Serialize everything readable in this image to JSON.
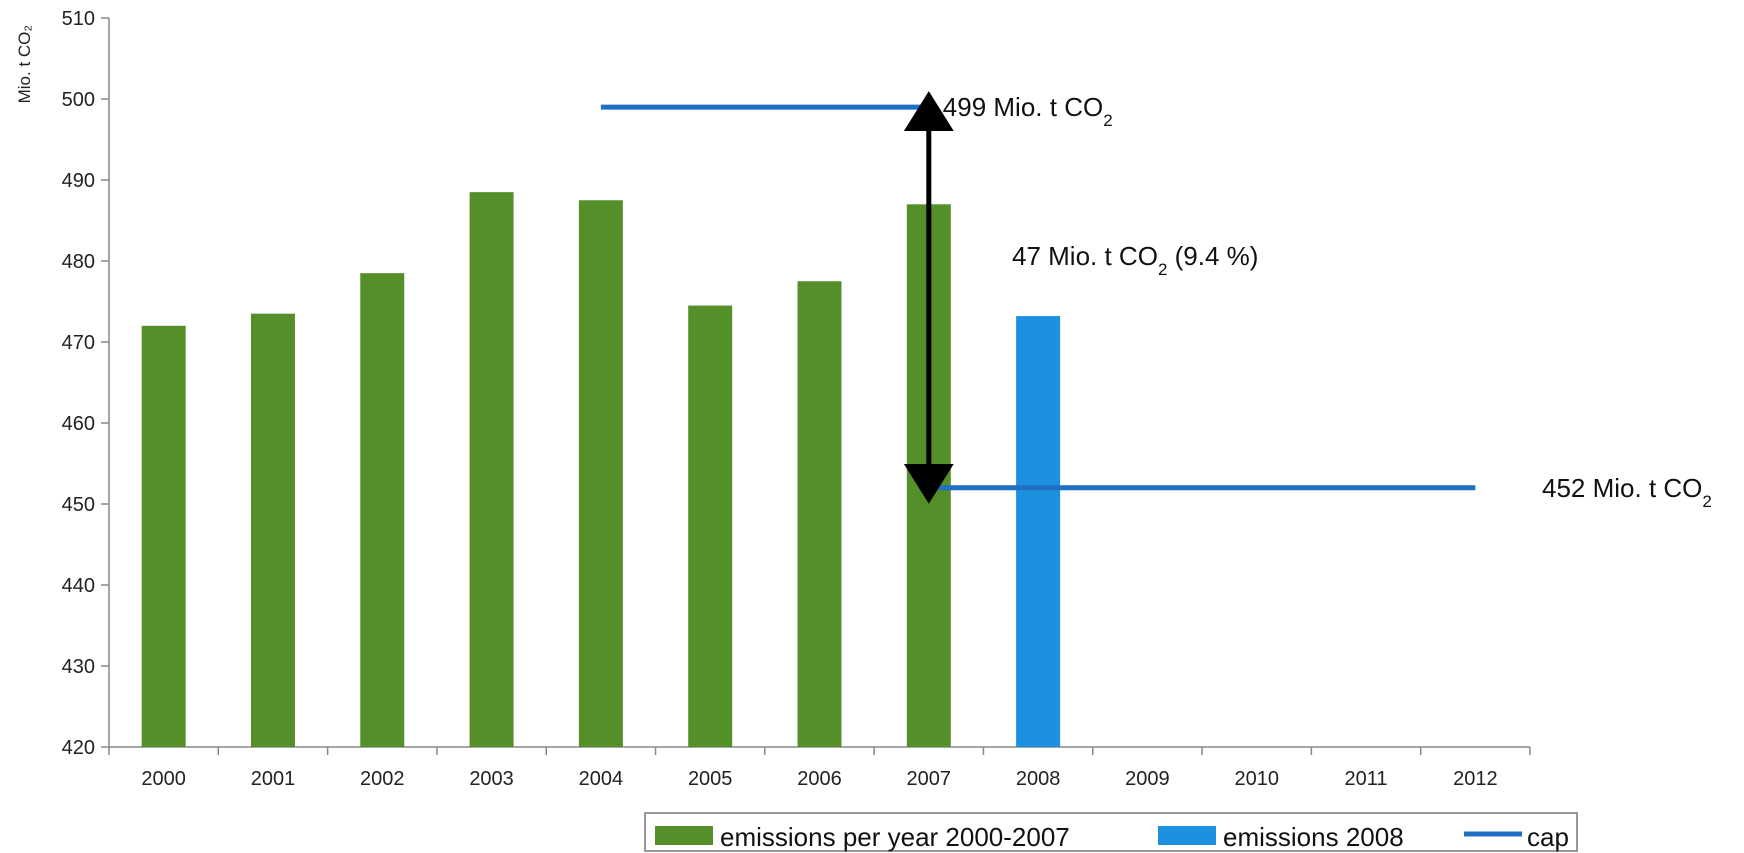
{
  "chart_data": {
    "type": "bar",
    "title": "",
    "ylabel": "Mio. t CO₂",
    "xlabel": "",
    "ylim": [
      420,
      510
    ],
    "yticks": [
      420,
      430,
      440,
      450,
      460,
      470,
      480,
      490,
      500,
      510
    ],
    "categories": [
      "2000",
      "2001",
      "2002",
      "2003",
      "2004",
      "2005",
      "2006",
      "2007",
      "2008",
      "2009",
      "2010",
      "2011",
      "2012"
    ],
    "series": [
      {
        "name": "emissions per year 2000-2007",
        "color": "#558f2a",
        "values": [
          472,
          473.5,
          478.5,
          488.5,
          487.5,
          474.5,
          477.5,
          487,
          null,
          null,
          null,
          null,
          null
        ]
      },
      {
        "name": "emissions 2008",
        "color": "#1e90e0",
        "values": [
          null,
          null,
          null,
          null,
          null,
          null,
          null,
          null,
          473.2,
          null,
          null,
          null,
          null
        ]
      }
    ],
    "cap_lines": [
      {
        "name": "cap",
        "color": "#1f6fc4",
        "y": 499,
        "x_start": 4.5,
        "x_end": 7.5
      },
      {
        "name": "cap",
        "color": "#1f6fc4",
        "y": 452,
        "x_start": 7.5,
        "x_end": 12.5
      }
    ],
    "annotations": [
      {
        "id": "cap-before",
        "text": "499 Mio. t CO",
        "sub": "2",
        "suffix": ""
      },
      {
        "id": "reduction",
        "text": "47 Mio. t CO",
        "sub": "2",
        "suffix": " (9.4 %)"
      },
      {
        "id": "cap-after",
        "text": "452 Mio. t CO",
        "sub": "2",
        "suffix": ""
      }
    ],
    "arrow": {
      "from": 499,
      "to": 452,
      "x": 7.5
    },
    "legend": {
      "position": "bottom",
      "items": [
        {
          "label": "emissions per year 2000-2007",
          "color": "#558f2a",
          "kind": "bar"
        },
        {
          "label": "emissions 2008",
          "color": "#1e90e0",
          "kind": "bar"
        },
        {
          "label": "cap",
          "color": "#1f6fc4",
          "kind": "line"
        }
      ]
    },
    "grid": false
  }
}
